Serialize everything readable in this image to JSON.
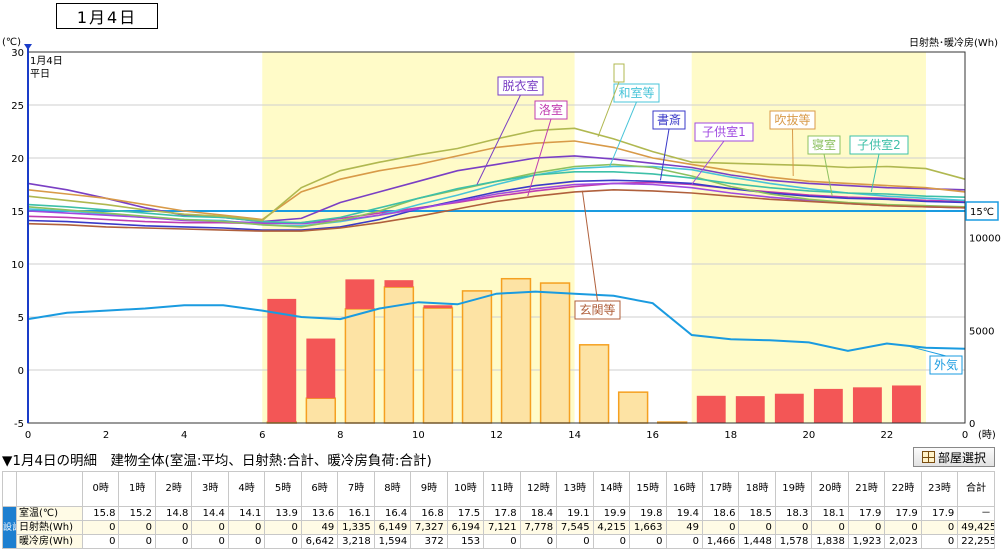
{
  "header": {
    "date": "1月4日"
  },
  "chart_data": {
    "type": "line",
    "left_axis_unit": "(℃)",
    "right_axis_label": "日射熱･暖冷房(Wh)",
    "date_label": "1月4日",
    "day_type": "平日",
    "x_unit": "(時)",
    "x_ticks": [
      "0",
      "2",
      "4",
      "6",
      "8",
      "10",
      "12",
      "14",
      "16",
      "18",
      "20",
      "22",
      "0"
    ],
    "y_ticks": [
      "-5",
      "0",
      "5",
      "10",
      "15",
      "20",
      "25",
      "30"
    ],
    "y_range": [
      -5,
      30
    ],
    "right_ticks": [
      "0",
      "5000",
      "10000"
    ],
    "right_range": [
      0,
      20000
    ],
    "x_range": [
      0,
      24
    ],
    "grid": "horizontal",
    "shaded_periods": [
      [
        6,
        14
      ],
      [
        17,
        23
      ]
    ],
    "setpoint": {
      "value": 15,
      "label": "15℃"
    },
    "hours": [
      0,
      1,
      2,
      3,
      4,
      5,
      6,
      7,
      8,
      9,
      10,
      11,
      12,
      13,
      14,
      15,
      16,
      17,
      18,
      19,
      20,
      21,
      22,
      23,
      24
    ],
    "solar_wh": [
      0,
      0,
      0,
      0,
      0,
      0,
      49,
      1335,
      6149,
      7327,
      6194,
      7121,
      7778,
      7545,
      4215,
      1663,
      49,
      0,
      0,
      0,
      0,
      0,
      0,
      0
    ],
    "heating_wh": [
      0,
      0,
      0,
      0,
      0,
      0,
      6642,
      3218,
      1594,
      372,
      153,
      0,
      0,
      0,
      0,
      0,
      0,
      1466,
      1448,
      1578,
      1838,
      1923,
      2023,
      0
    ],
    "bar_colors": {
      "solar": "#fde3a4",
      "solar_edge": "#f5a020",
      "heating": "#f35656"
    },
    "series": [
      {
        "name": "外気",
        "color": "#1a9be0",
        "values": [
          4.8,
          5.4,
          5.6,
          5.8,
          6.1,
          6.1,
          5.6,
          5.0,
          4.8,
          5.8,
          6.4,
          6.2,
          7.2,
          7.4,
          7.2,
          7.0,
          6.3,
          3.3,
          2.9,
          2.8,
          2.6,
          1.8,
          2.5,
          2.1,
          2.0
        ]
      },
      {
        "name": "脱衣室",
        "color": "#7a3fc4",
        "values": [
          17.6,
          17.0,
          16.2,
          15.3,
          14.6,
          14.4,
          14.0,
          14.3,
          15.8,
          16.8,
          17.8,
          18.8,
          19.4,
          20.0,
          20.2,
          19.9,
          19.5,
          19.1,
          18.4,
          17.9,
          17.6,
          17.4,
          17.2,
          17.1,
          17.0
        ]
      },
      {
        "name": "洛室",
        "color": "#c03cb0",
        "values": [
          14.5,
          14.4,
          14.2,
          14.0,
          13.9,
          13.9,
          13.8,
          13.9,
          14.3,
          14.8,
          15.3,
          15.8,
          16.4,
          16.9,
          17.3,
          17.6,
          17.7,
          17.5,
          17.1,
          16.8,
          16.5,
          16.3,
          16.2,
          16.0,
          15.9
        ]
      },
      {
        "name": "和室等",
        "color": "#48c4d8",
        "values": [
          15.2,
          15.0,
          14.7,
          14.4,
          14.2,
          14.1,
          13.7,
          13.6,
          14.0,
          14.6,
          15.6,
          16.5,
          17.5,
          18.4,
          19.0,
          19.2,
          19.2,
          18.9,
          18.2,
          17.6,
          17.1,
          16.7,
          16.4,
          16.2,
          16.0
        ]
      },
      {
        "name": "書斎",
        "color": "#3a3ac8",
        "values": [
          14.1,
          14.0,
          13.8,
          13.6,
          13.5,
          13.4,
          13.2,
          13.2,
          13.5,
          14.2,
          15.2,
          16.0,
          16.8,
          17.4,
          17.8,
          17.9,
          17.8,
          17.6,
          17.1,
          16.7,
          16.4,
          16.2,
          16.1,
          15.9,
          15.8
        ]
      },
      {
        "name": "子供室1",
        "color": "#a04ae0",
        "values": [
          15.0,
          14.8,
          14.6,
          14.4,
          14.1,
          14.0,
          13.9,
          13.8,
          14.1,
          14.6,
          15.2,
          15.9,
          16.6,
          17.1,
          17.5,
          17.6,
          17.5,
          17.2,
          16.7,
          16.3,
          16.0,
          15.7,
          15.5,
          15.4,
          15.3
        ]
      },
      {
        "name": "吹抜等",
        "color": "#d89a48",
        "values": [
          17.0,
          16.6,
          16.2,
          15.6,
          15.0,
          14.6,
          14.2,
          16.8,
          18.0,
          18.8,
          19.4,
          20.2,
          21.0,
          21.4,
          21.6,
          21.0,
          20.0,
          19.4,
          18.8,
          18.2,
          17.8,
          17.6,
          17.4,
          17.2,
          16.8
        ]
      },
      {
        "name": "寝室",
        "color": "#8cc060",
        "values": [
          15.4,
          15.1,
          14.8,
          14.5,
          14.2,
          14.0,
          13.7,
          13.5,
          14.1,
          15.0,
          16.2,
          17.0,
          17.8,
          18.6,
          19.2,
          19.4,
          19.1,
          18.3,
          17.3,
          16.6,
          16.1,
          15.8,
          15.6,
          15.5,
          15.4
        ]
      },
      {
        "name": "子供室2",
        "color": "#3ec0a8",
        "values": [
          15.6,
          15.4,
          15.1,
          14.8,
          14.5,
          14.4,
          14.0,
          13.9,
          14.4,
          15.3,
          16.2,
          17.1,
          17.8,
          18.4,
          18.7,
          18.7,
          18.5,
          18.1,
          17.6,
          17.2,
          16.9,
          16.7,
          16.6,
          16.4,
          16.3
        ]
      },
      {
        "name": "",
        "color": "#b0b850",
        "values": [
          16.4,
          16.0,
          15.6,
          15.1,
          14.7,
          14.5,
          14.1,
          17.2,
          18.8,
          19.6,
          20.3,
          20.9,
          21.8,
          22.6,
          22.8,
          21.8,
          20.6,
          19.6,
          19.5,
          19.4,
          19.3,
          19.1,
          19.2,
          19.0,
          18.0
        ]
      },
      {
        "name": "玄関等",
        "color": "#b0603c",
        "values": [
          13.8,
          13.7,
          13.5,
          13.4,
          13.3,
          13.2,
          13.1,
          13.1,
          13.4,
          13.9,
          14.5,
          15.2,
          15.9,
          16.4,
          16.8,
          17.0,
          16.9,
          16.7,
          16.4,
          16.1,
          15.9,
          15.7,
          15.5,
          15.4,
          15.3
        ]
      }
    ]
  },
  "detail": {
    "title": "▼1月4日の明細　建物全体(室温:平均、日射熱:合計、暖冷房負荷:合計)",
    "room_button": "部屋選択",
    "side_label": "設計",
    "columns": [
      "0時",
      "1時",
      "2時",
      "3時",
      "4時",
      "5時",
      "6時",
      "7時",
      "8時",
      "9時",
      "10時",
      "11時",
      "12時",
      "13時",
      "14時",
      "15時",
      "16時",
      "17時",
      "18時",
      "19時",
      "20時",
      "21時",
      "22時",
      "23時",
      "合計"
    ],
    "rows": [
      {
        "label": "室温(℃)",
        "values": [
          "15.8",
          "15.2",
          "14.8",
          "14.4",
          "14.1",
          "13.9",
          "13.6",
          "16.1",
          "16.4",
          "16.8",
          "17.5",
          "17.8",
          "18.4",
          "19.1",
          "19.9",
          "19.8",
          "19.4",
          "18.6",
          "18.5",
          "18.3",
          "18.1",
          "17.9",
          "17.9",
          "17.9",
          "－"
        ]
      },
      {
        "label": "日射熱(Wh)",
        "values": [
          "0",
          "0",
          "0",
          "0",
          "0",
          "0",
          "49",
          "1,335",
          "6,149",
          "7,327",
          "6,194",
          "7,121",
          "7,778",
          "7,545",
          "4,215",
          "1,663",
          "49",
          "0",
          "0",
          "0",
          "0",
          "0",
          "0",
          "0",
          "49,425"
        ]
      },
      {
        "label": "暖冷房(Wh)",
        "values": [
          "0",
          "0",
          "0",
          "0",
          "0",
          "0",
          "6,642",
          "3,218",
          "1,594",
          "372",
          "153",
          "0",
          "0",
          "0",
          "0",
          "0",
          "0",
          "1,466",
          "1,448",
          "1,578",
          "1,838",
          "1,923",
          "2,023",
          "0",
          "22,255"
        ]
      }
    ]
  }
}
